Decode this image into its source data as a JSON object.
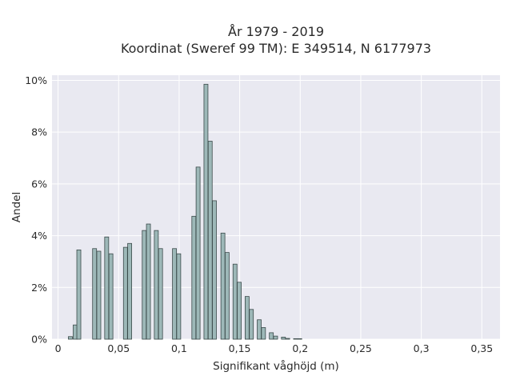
{
  "chart_data": {
    "type": "bar",
    "title": "År 1979 - 2019",
    "subtitle": "Koordinat (Sweref 99 TM): E 349514, N 6177973",
    "xlabel": "Signifikant våghöjd (m)",
    "ylabel": "Andel",
    "xlim": [
      -0.005,
      0.365
    ],
    "ylim": [
      0,
      10.2
    ],
    "x_ticks": [
      {
        "value": 0,
        "label": "0"
      },
      {
        "value": 0.05,
        "label": "0,05"
      },
      {
        "value": 0.1,
        "label": "0,1"
      },
      {
        "value": 0.15,
        "label": "0,15"
      },
      {
        "value": 0.2,
        "label": "0,2"
      },
      {
        "value": 0.25,
        "label": "0,25"
      },
      {
        "value": 0.3,
        "label": "0,3"
      },
      {
        "value": 0.35,
        "label": "0,35"
      }
    ],
    "y_ticks": [
      {
        "value": 0,
        "label": "0%"
      },
      {
        "value": 2,
        "label": "2%"
      },
      {
        "value": 4,
        "label": "4%"
      },
      {
        "value": 6,
        "label": "6%"
      },
      {
        "value": 8,
        "label": "8%"
      },
      {
        "value": 10,
        "label": "10%"
      }
    ],
    "grid": true,
    "bar_width": 0.0033,
    "bars": [
      {
        "x": 0.0085,
        "y": 0.1
      },
      {
        "x": 0.0125,
        "y": 0.55
      },
      {
        "x": 0.0155,
        "y": 3.45
      },
      {
        "x": 0.0285,
        "y": 3.5
      },
      {
        "x": 0.032,
        "y": 3.4
      },
      {
        "x": 0.0385,
        "y": 3.95
      },
      {
        "x": 0.042,
        "y": 3.3
      },
      {
        "x": 0.054,
        "y": 3.55
      },
      {
        "x": 0.0575,
        "y": 3.7
      },
      {
        "x": 0.0695,
        "y": 4.2
      },
      {
        "x": 0.073,
        "y": 4.45
      },
      {
        "x": 0.0795,
        "y": 4.2
      },
      {
        "x": 0.083,
        "y": 3.5
      },
      {
        "x": 0.0945,
        "y": 3.5
      },
      {
        "x": 0.098,
        "y": 3.3
      },
      {
        "x": 0.1105,
        "y": 4.75
      },
      {
        "x": 0.114,
        "y": 6.65
      },
      {
        "x": 0.1205,
        "y": 9.85
      },
      {
        "x": 0.124,
        "y": 7.65
      },
      {
        "x": 0.1275,
        "y": 5.35
      },
      {
        "x": 0.1345,
        "y": 4.1
      },
      {
        "x": 0.138,
        "y": 3.35
      },
      {
        "x": 0.1445,
        "y": 2.9
      },
      {
        "x": 0.148,
        "y": 2.2
      },
      {
        "x": 0.1545,
        "y": 1.65
      },
      {
        "x": 0.158,
        "y": 1.15
      },
      {
        "x": 0.1645,
        "y": 0.75
      },
      {
        "x": 0.168,
        "y": 0.45
      },
      {
        "x": 0.1745,
        "y": 0.25
      },
      {
        "x": 0.178,
        "y": 0.12
      },
      {
        "x": 0.1845,
        "y": 0.08
      },
      {
        "x": 0.188,
        "y": 0.03
      },
      {
        "x": 0.1945,
        "y": 0.02
      },
      {
        "x": 0.198,
        "y": 0.02
      }
    ]
  }
}
